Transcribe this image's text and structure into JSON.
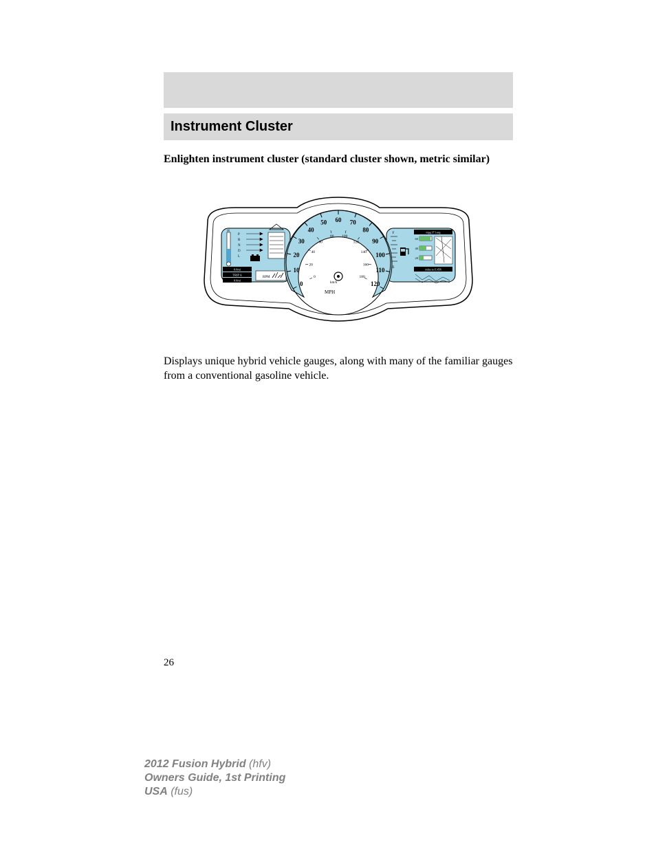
{
  "header": {
    "section_title": "Instrument Cluster"
  },
  "subtitle": "Enlighten instrument cluster (standard cluster shown, metric similar)",
  "body_text": "Displays unique hybrid vehicle gauges, along with many of the familiar gauges from a conventional gasoline vehicle.",
  "page_number": "26",
  "footer": {
    "line1_bold": "2012 Fusion Hybrid",
    "line1_rest": " (hfv)",
    "line2": "Owners Guide, 1st Printing",
    "line3_bold": "USA",
    "line3_rest": " (fus)"
  },
  "diagram": {
    "type": "infographic",
    "background_color": "#ffffff",
    "outline_color": "#000000",
    "speedometer": {
      "face_color": "#a8d8e8",
      "outline_color": "#000000",
      "outer_ticks": [
        0,
        10,
        20,
        30,
        40,
        50,
        60,
        70,
        80,
        90,
        100,
        110,
        120
      ],
      "outer_unit": "MPH",
      "inner_ticks": [
        0,
        20,
        40,
        60,
        80,
        100,
        120,
        140,
        160,
        180
      ],
      "inner_unit": "km/h",
      "tick_color": "#000000",
      "text_color": "#000000",
      "start_angle_deg": 210,
      "end_angle_deg": -30
    },
    "left_pod": {
      "face_color": "#a8d8e8",
      "temp_gauge": {
        "top_label": "H",
        "bottom_label": "C"
      },
      "gear_indicator": [
        "P",
        "R",
        "N",
        "D",
        "L"
      ],
      "readouts": [
        "0.0mi",
        "TRIP A",
        "0.0mi"
      ],
      "rpm_label": "RPM"
    },
    "right_pod": {
      "face_color": "#a8d8e8",
      "fuel_gauge": {
        "top_label": "F",
        "bottom_label": "E"
      },
      "mpg_text": "mpg:37.1avg",
      "bars": [
        "60",
        "40",
        "20"
      ],
      "miles_text": "miles to E:458"
    }
  }
}
